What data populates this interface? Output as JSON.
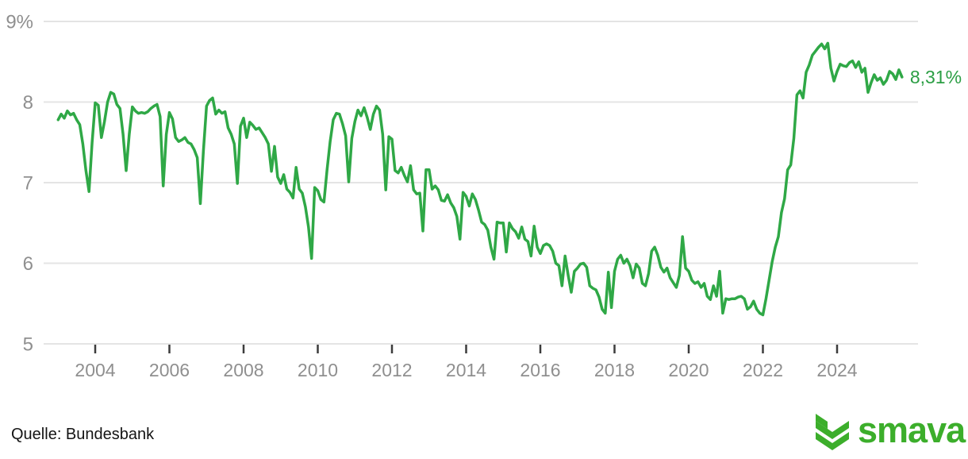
{
  "chart_data": {
    "type": "line",
    "title": "",
    "unit": "%",
    "frequency": "monthly",
    "start": "2003-01",
    "end": "2025-10",
    "values": [
      7.78,
      7.85,
      7.8,
      7.89,
      7.84,
      7.86,
      7.78,
      7.72,
      7.48,
      7.15,
      6.89,
      7.5,
      7.99,
      7.96,
      7.56,
      7.76,
      8.0,
      8.12,
      8.1,
      7.97,
      7.92,
      7.6,
      7.15,
      7.6,
      7.94,
      7.89,
      7.86,
      7.87,
      7.86,
      7.88,
      7.92,
      7.95,
      7.97,
      7.82,
      6.96,
      7.6,
      7.87,
      7.79,
      7.56,
      7.51,
      7.53,
      7.56,
      7.5,
      7.48,
      7.41,
      7.31,
      6.74,
      7.4,
      7.95,
      8.02,
      8.05,
      7.85,
      7.9,
      7.86,
      7.88,
      7.68,
      7.6,
      7.48,
      6.99,
      7.7,
      7.8,
      7.56,
      7.75,
      7.71,
      7.66,
      7.68,
      7.62,
      7.56,
      7.48,
      7.14,
      7.45,
      7.07,
      6.99,
      7.1,
      6.92,
      6.88,
      6.81,
      7.19,
      6.92,
      6.87,
      6.7,
      6.45,
      6.06,
      6.94,
      6.9,
      6.79,
      6.76,
      7.16,
      7.51,
      7.78,
      7.86,
      7.85,
      7.73,
      7.58,
      7.01,
      7.55,
      7.76,
      7.9,
      7.83,
      7.93,
      7.81,
      7.66,
      7.85,
      7.95,
      7.9,
      7.6,
      6.91,
      7.57,
      7.54,
      7.15,
      7.12,
      7.19,
      7.09,
      7.01,
      7.21,
      6.91,
      6.86,
      6.87,
      6.4,
      7.16,
      7.16,
      6.92,
      6.96,
      6.91,
      6.78,
      6.77,
      6.85,
      6.75,
      6.69,
      6.58,
      6.3,
      6.88,
      6.83,
      6.71,
      6.86,
      6.79,
      6.66,
      6.51,
      6.48,
      6.41,
      6.2,
      6.05,
      6.51,
      6.5,
      6.5,
      6.14,
      6.5,
      6.43,
      6.39,
      6.31,
      6.45,
      6.3,
      6.27,
      6.09,
      6.46,
      6.2,
      6.12,
      6.22,
      6.24,
      6.22,
      6.15,
      6.0,
      5.97,
      5.72,
      6.09,
      5.85,
      5.64,
      5.9,
      5.94,
      5.99,
      6.0,
      5.95,
      5.72,
      5.69,
      5.67,
      5.58,
      5.43,
      5.38,
      5.89,
      5.45,
      5.9,
      6.05,
      6.1,
      6.0,
      6.05,
      5.97,
      5.82,
      5.99,
      5.94,
      5.75,
      5.72,
      5.87,
      6.15,
      6.2,
      6.1,
      5.95,
      5.89,
      5.94,
      5.82,
      5.76,
      5.7,
      5.85,
      6.33,
      5.94,
      5.9,
      5.79,
      5.75,
      5.77,
      5.7,
      5.75,
      5.59,
      5.55,
      5.72,
      5.59,
      5.9,
      5.38,
      5.56,
      5.55,
      5.56,
      5.56,
      5.58,
      5.59,
      5.56,
      5.43,
      5.46,
      5.53,
      5.43,
      5.38,
      5.36,
      5.56,
      5.79,
      6.02,
      6.2,
      6.33,
      6.63,
      6.8,
      7.16,
      7.22,
      7.55,
      8.09,
      8.14,
      8.05,
      8.37,
      8.46,
      8.58,
      8.63,
      8.68,
      8.72,
      8.66,
      8.73,
      8.42,
      8.26,
      8.38,
      8.47,
      8.45,
      8.44,
      8.49,
      8.51,
      8.43,
      8.5,
      8.37,
      8.42,
      8.12,
      8.24,
      8.34,
      8.27,
      8.3,
      8.22,
      8.27,
      8.38,
      8.35,
      8.28,
      8.4,
      8.31
    ],
    "last_value": 8.31,
    "end_label": "8,31%",
    "y_axis": {
      "tick_labels": [
        "9%",
        "8",
        "7",
        "6",
        "5"
      ],
      "tick_values": [
        9,
        8,
        7,
        6,
        5
      ],
      "range": [
        5,
        9
      ]
    },
    "x_axis": {
      "tick_labels": [
        "2004",
        "2006",
        "2008",
        "2010",
        "2012",
        "2014",
        "2016",
        "2018",
        "2020",
        "2022",
        "2024"
      ],
      "tick_values": [
        2004,
        2006,
        2008,
        2010,
        2012,
        2014,
        2016,
        2018,
        2020,
        2022,
        2024
      ],
      "range_years": [
        2003.0,
        2025.83
      ]
    },
    "grid": true,
    "legend": "none",
    "colors": {
      "line": "#2fa846",
      "end_label": "#2b9e44",
      "grid": "#e4e4e4",
      "axis_text": "#8f8f8f",
      "tick_mark": "#3c3c3c"
    }
  },
  "footer": {
    "source": "Quelle: Bundesbank",
    "logo_text": "smava",
    "logo_color": "#3cae2b"
  }
}
